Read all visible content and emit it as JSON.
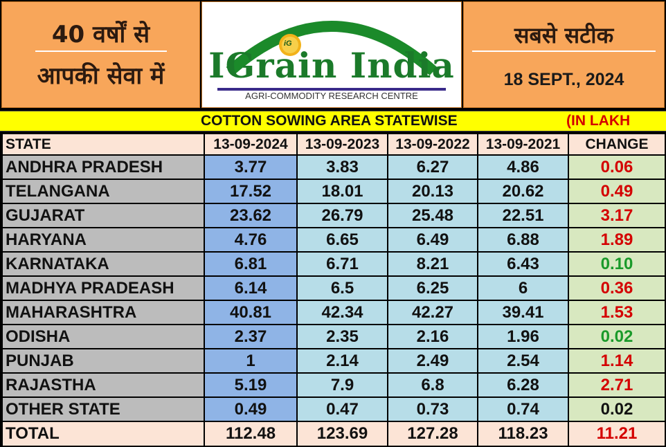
{
  "header": {
    "left_line1": "40 वर्षों से",
    "left_line2": "आपकी सेवा में",
    "logo_title": "IGrain India",
    "logo_subtitle": "AGRI-COMMODITY RESEARCH CENTRE",
    "logo_badge": "iG",
    "right_line1": "सबसे सटीक",
    "date": "18 SEPT., 2024"
  },
  "title_bar": {
    "title": "COTTON  SOWING AREA STATEWISE",
    "unit": "(IN LAKH"
  },
  "table": {
    "headers": [
      "STATE",
      "13-09-2024",
      "13-09-2023",
      "13-09-2022",
      "13-09-2021",
      "CHANGE"
    ],
    "rows": [
      {
        "state": "ANDHRA PRADESH",
        "v2024": "3.77",
        "v2023": "3.83",
        "v2022": "6.27",
        "v2021": "4.86",
        "change": "0.06",
        "trend": "up"
      },
      {
        "state": "TELANGANA",
        "v2024": "17.52",
        "v2023": "18.01",
        "v2022": "20.13",
        "v2021": "20.62",
        "change": "0.49",
        "trend": "up"
      },
      {
        "state": "GUJARAT",
        "v2024": "23.62",
        "v2023": "26.79",
        "v2022": "25.48",
        "v2021": "22.51",
        "change": "3.17",
        "trend": "up"
      },
      {
        "state": "HARYANA",
        "v2024": "4.76",
        "v2023": "6.65",
        "v2022": "6.49",
        "v2021": "6.88",
        "change": "1.89",
        "trend": "up"
      },
      {
        "state": "KARNATAKA",
        "v2024": "6.81",
        "v2023": "6.71",
        "v2022": "8.21",
        "v2021": "6.43",
        "change": "0.10",
        "trend": "down"
      },
      {
        "state": "MADHYA PRADEASH",
        "v2024": "6.14",
        "v2023": "6.5",
        "v2022": "6.25",
        "v2021": "6",
        "change": "0.36",
        "trend": "up"
      },
      {
        "state": "MAHARASHTRA",
        "v2024": "40.81",
        "v2023": "42.34",
        "v2022": "42.27",
        "v2021": "39.41",
        "change": "1.53",
        "trend": "up"
      },
      {
        "state": "ODISHA",
        "v2024": "2.37",
        "v2023": "2.35",
        "v2022": "2.16",
        "v2021": "1.96",
        "change": "0.02",
        "trend": "down"
      },
      {
        "state": "PUNJAB",
        "v2024": "1",
        "v2023": "2.14",
        "v2022": "2.49",
        "v2021": "2.54",
        "change": "1.14",
        "trend": "up"
      },
      {
        "state": "RAJASTHA",
        "v2024": "5.19",
        "v2023": "7.9",
        "v2022": "6.8",
        "v2021": "6.28",
        "change": "2.71",
        "trend": "up"
      },
      {
        "state": "OTHER STATE",
        "v2024": "0.49",
        "v2023": "0.47",
        "v2022": "0.73",
        "v2021": "0.74",
        "change": "0.02",
        "trend": "neutral"
      }
    ],
    "total": {
      "state": "TOTAL",
      "v2024": "112.48",
      "v2023": "123.69",
      "v2022": "127.28",
      "v2021": "118.23",
      "change": "11.21",
      "trend": "up"
    }
  },
  "watermark": "IGrain India",
  "colors": {
    "header_orange": "#f8a65a",
    "title_yellow": "#ffff00",
    "increase_red": "#d40000",
    "decrease_green": "#1a9a2a"
  }
}
